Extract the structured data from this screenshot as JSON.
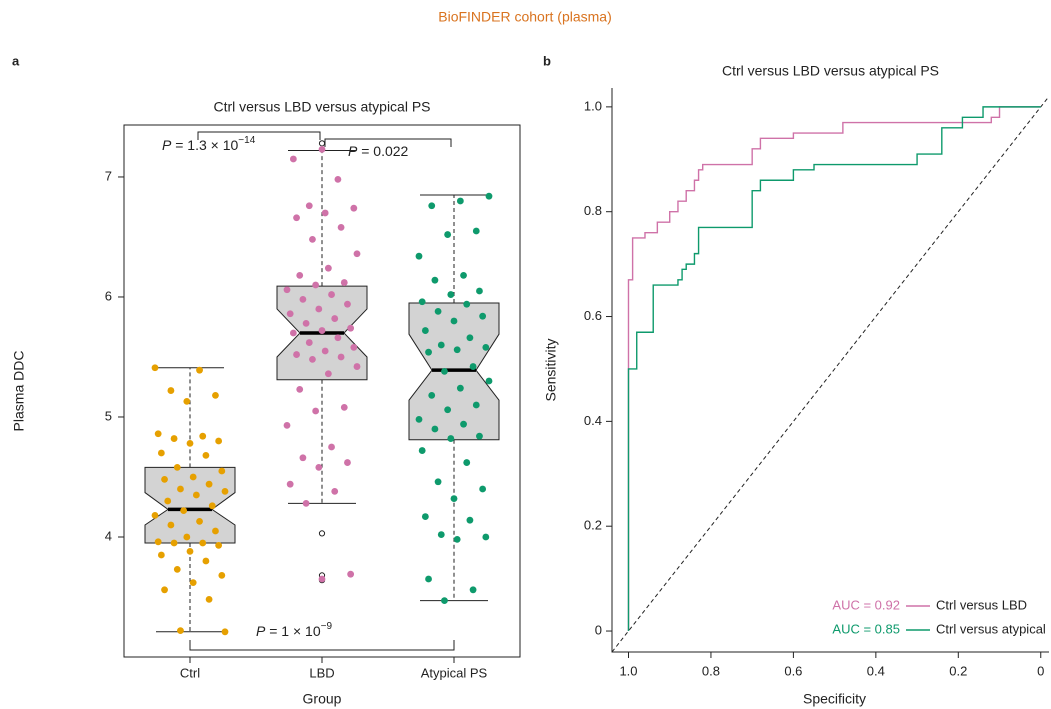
{
  "title": "BioFINDER cohort (plasma)",
  "chart_data": [
    {
      "type": "boxplot",
      "panel": "a",
      "title": "Ctrl versus LBD versus atypical PS",
      "x_label": "Group",
      "y_label": "Plasma DDC",
      "categories": [
        "Ctrl",
        "LBD",
        "Atypical PS"
      ],
      "colors": [
        "#e6a000",
        "#cf72a8",
        "#0e9a6c"
      ],
      "box_color": "#d3d3d3",
      "ylim": [
        3.0,
        7.433
      ],
      "yticks": [
        4,
        5,
        6,
        7
      ],
      "boxes": [
        {
          "whisker_low": 3.21,
          "q1": 3.95,
          "notch_low": 4.1,
          "median": 4.23,
          "notch_high": 4.37,
          "q3": 4.58,
          "whisker_high": 5.41
        },
        {
          "whisker_low": 4.28,
          "q1": 5.31,
          "notch_low": 5.5,
          "median": 5.7,
          "notch_high": 5.9,
          "q3": 6.09,
          "whisker_high": 7.22
        },
        {
          "whisker_low": 3.47,
          "q1": 4.81,
          "notch_low": 5.14,
          "median": 5.39,
          "notch_high": 5.69,
          "q3": 5.95,
          "whisker_high": 6.85
        }
      ],
      "outliers": [
        [],
        [
          7.28,
          4.03,
          3.68,
          3.64
        ],
        []
      ],
      "points": [
        [
          5.41,
          5.39,
          5.22,
          5.18,
          5.13,
          4.86,
          4.84,
          4.82,
          4.8,
          4.78,
          4.7,
          4.68,
          4.58,
          4.55,
          4.5,
          4.48,
          4.44,
          4.4,
          4.38,
          4.35,
          4.3,
          4.26,
          4.22,
          4.18,
          4.13,
          4.1,
          4.05,
          4.0,
          3.96,
          3.95,
          3.95,
          3.93,
          3.88,
          3.85,
          3.8,
          3.73,
          3.68,
          3.62,
          3.56,
          3.48,
          3.22,
          3.21
        ],
        [
          7.23,
          7.15,
          6.98,
          6.76,
          6.74,
          6.7,
          6.66,
          6.58,
          6.48,
          6.36,
          6.24,
          6.18,
          6.12,
          6.1,
          6.06,
          6.02,
          5.98,
          5.94,
          5.9,
          5.86,
          5.82,
          5.78,
          5.74,
          5.72,
          5.7,
          5.66,
          5.62,
          5.58,
          5.55,
          5.52,
          5.5,
          5.48,
          5.42,
          5.36,
          5.23,
          5.08,
          5.05,
          4.93,
          4.75,
          4.66,
          4.62,
          4.58,
          4.44,
          4.38,
          4.28,
          3.69,
          3.65
        ],
        [
          6.84,
          6.8,
          6.76,
          6.55,
          6.52,
          6.34,
          6.18,
          6.14,
          6.05,
          6.02,
          5.96,
          5.94,
          5.88,
          5.84,
          5.8,
          5.72,
          5.66,
          5.6,
          5.58,
          5.56,
          5.54,
          5.42,
          5.38,
          5.3,
          5.24,
          5.18,
          5.1,
          5.06,
          4.98,
          4.94,
          4.9,
          4.84,
          4.82,
          4.72,
          4.62,
          4.46,
          4.4,
          4.32,
          4.17,
          4.14,
          4.02,
          4.0,
          3.98,
          3.65,
          3.56,
          3.47
        ]
      ],
      "annotations": [
        {
          "symbol": "P",
          "text": " = 1.3 × 10",
          "exponent": "−14"
        },
        {
          "symbol": "P",
          "text": " = 0.022"
        },
        {
          "symbol": "P",
          "text": " = 1 × 10",
          "exponent": "−9"
        }
      ]
    },
    {
      "type": "line",
      "panel": "b",
      "title": "Ctrl versus LBD versus atypical PS",
      "x_label": "Specificity",
      "y_label": "Sensitivity",
      "xlim": [
        1.04,
        -0.02
      ],
      "ylim": [
        -0.04,
        1.036
      ],
      "xticks": [
        {
          "value": 1,
          "label": "1.0"
        },
        0.8,
        0.6,
        0.4,
        0.2,
        0
      ],
      "yticks": [
        0,
        0.2,
        0.4,
        0.6,
        0.8,
        {
          "value": 1,
          "label": "1.0"
        }
      ],
      "series": [
        {
          "name": "Ctrl versus LBD",
          "auc_label": "AUC = 0.92",
          "color": "#cf72a8",
          "x": [
            1.0,
            1.0,
            0.99,
            0.99,
            0.96,
            0.96,
            0.93,
            0.93,
            0.9,
            0.9,
            0.88,
            0.88,
            0.86,
            0.86,
            0.84,
            0.84,
            0.83,
            0.83,
            0.82,
            0.82,
            0.7,
            0.7,
            0.68,
            0.68,
            0.6,
            0.6,
            0.48,
            0.48,
            0.12,
            0.12,
            0.1,
            0.1,
            0.0
          ],
          "values": [
            0,
            0.67,
            0.67,
            0.75,
            0.75,
            0.76,
            0.76,
            0.78,
            0.78,
            0.8,
            0.8,
            0.82,
            0.82,
            0.84,
            0.84,
            0.86,
            0.86,
            0.88,
            0.88,
            0.89,
            0.89,
            0.92,
            0.92,
            0.94,
            0.94,
            0.95,
            0.95,
            0.97,
            0.97,
            0.98,
            0.98,
            1.0,
            1.0
          ]
        },
        {
          "name": "Ctrl versus atypical",
          "auc_label": "AUC = 0.85",
          "color": "#0e9a6c",
          "x": [
            1.0,
            1.0,
            0.98,
            0.98,
            0.94,
            0.94,
            0.88,
            0.88,
            0.87,
            0.87,
            0.86,
            0.86,
            0.84,
            0.84,
            0.83,
            0.83,
            0.7,
            0.7,
            0.68,
            0.68,
            0.6,
            0.6,
            0.55,
            0.55,
            0.3,
            0.3,
            0.24,
            0.24,
            0.19,
            0.19,
            0.14,
            0.14,
            0.0
          ],
          "values": [
            0,
            0.5,
            0.5,
            0.57,
            0.57,
            0.66,
            0.66,
            0.67,
            0.67,
            0.69,
            0.69,
            0.7,
            0.7,
            0.72,
            0.72,
            0.77,
            0.77,
            0.84,
            0.84,
            0.86,
            0.86,
            0.88,
            0.88,
            0.89,
            0.89,
            0.91,
            0.91,
            0.96,
            0.96,
            0.98,
            0.98,
            1.0,
            1.0
          ]
        }
      ]
    }
  ]
}
